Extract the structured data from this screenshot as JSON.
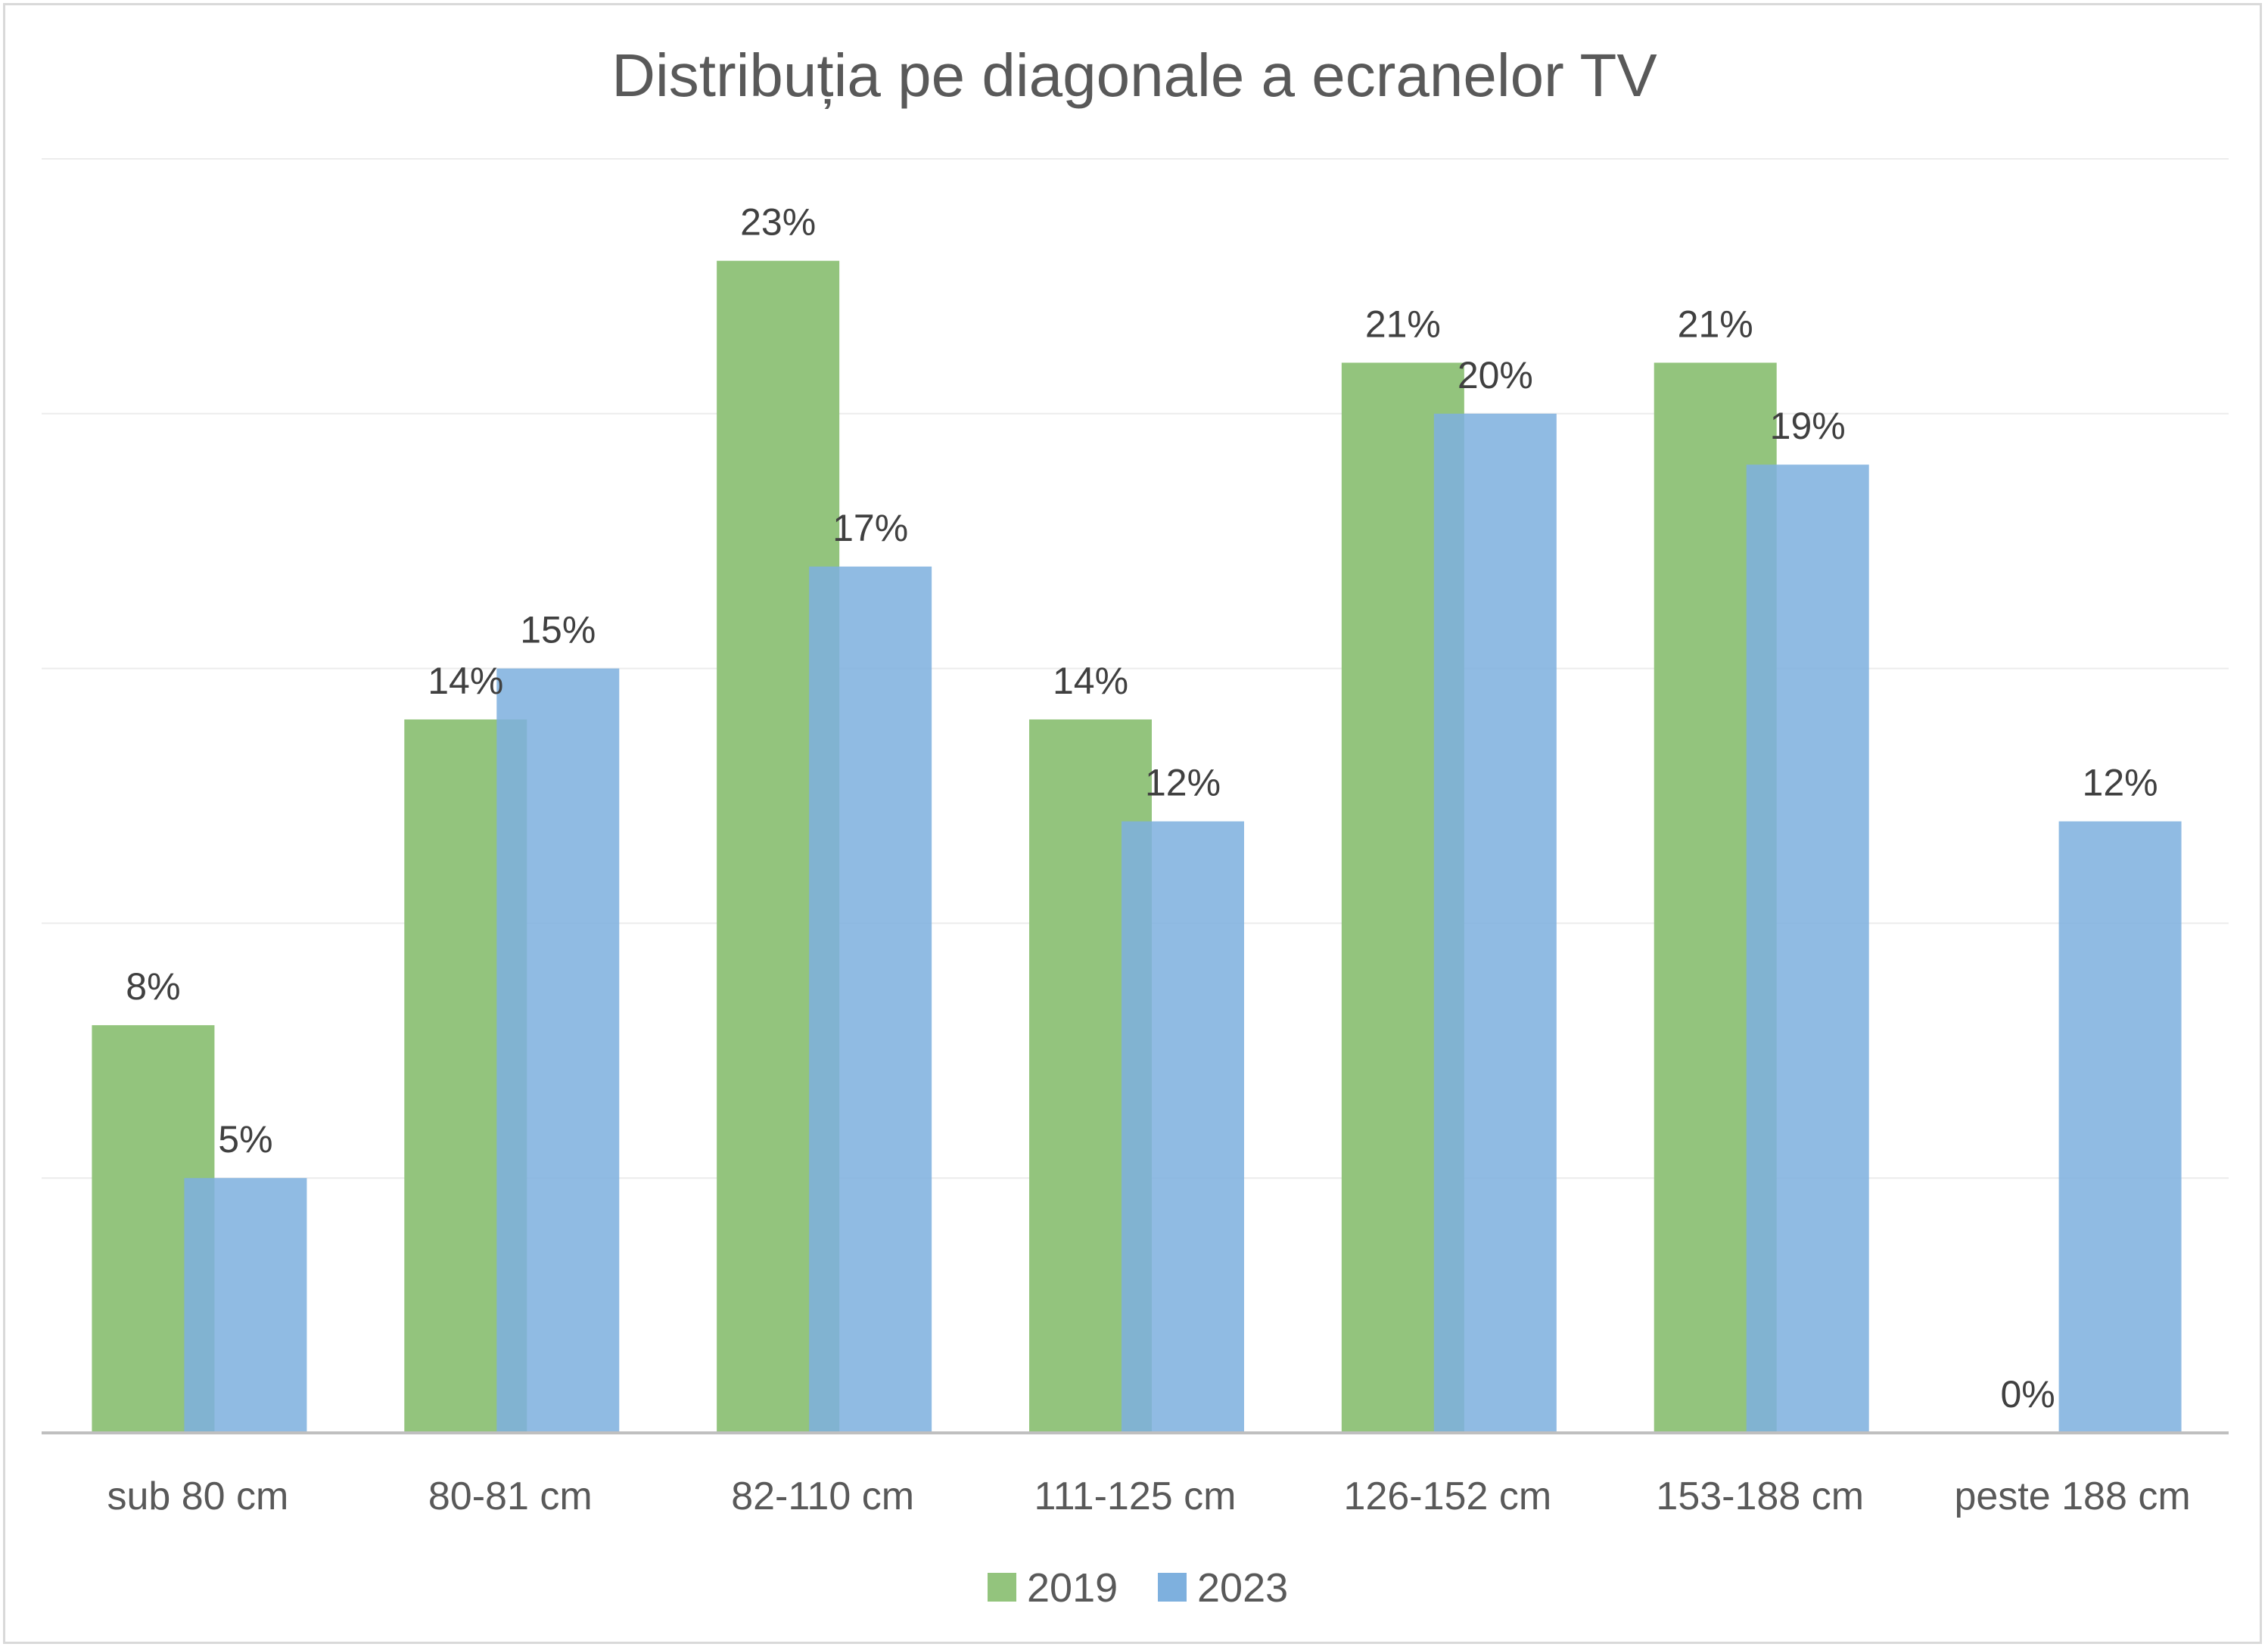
{
  "chart_data": {
    "type": "bar",
    "title": "Distribuția pe diagonale a ecranelor TV",
    "categories": [
      "sub 80 cm",
      "80-81 cm",
      "82-110 cm",
      "111-125 cm",
      "126-152 cm",
      "153-188 cm",
      "peste 188 cm"
    ],
    "series": [
      {
        "name": "2019",
        "values": [
          8,
          14,
          23,
          14,
          21,
          21,
          0
        ],
        "labels": [
          "8%",
          "14%",
          "23%",
          "14%",
          "21%",
          "21%",
          "0%"
        ],
        "color": "#93c47d"
      },
      {
        "name": "2023",
        "values": [
          5,
          15,
          17,
          12,
          20,
          19,
          12
        ],
        "labels": [
          "5%",
          "15%",
          "17%",
          "12%",
          "20%",
          "19%",
          "12%"
        ],
        "color": "#7eb0de"
      }
    ],
    "ylim": [
      0,
      25
    ],
    "grid": true,
    "legend": "bottom",
    "xlabel": "",
    "ylabel": ""
  }
}
